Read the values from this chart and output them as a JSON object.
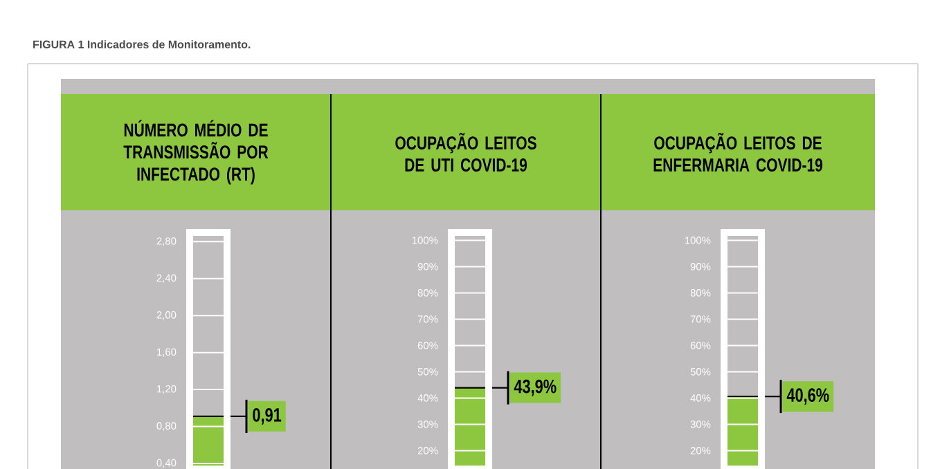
{
  "chart_data": [
    {
      "type": "bar",
      "title": "NÚMERO MÉDIO DE TRANSMISSÃO POR INFECTADO (RT)",
      "annotations": [
        "FIGURA 1 Indicadores de Monitoramento."
      ],
      "categories": [
        null
      ],
      "values": [
        0.91
      ],
      "value_labels": [
        "0,91"
      ],
      "color": "#8dc63f",
      "ylim": [
        0.34,
        2.9
      ],
      "yticks": [
        {
          "value": 0.4,
          "label": "0,40"
        },
        {
          "value": 0.8,
          "label": "0,80"
        },
        {
          "value": 1.2,
          "label": "1,20"
        },
        {
          "value": 1.6,
          "label": "1,60"
        },
        {
          "value": 2.0,
          "label": "2,00"
        },
        {
          "value": 2.4,
          "label": "2,40"
        },
        {
          "value": 2.8,
          "label": "2,80"
        }
      ],
      "grid": "y"
    },
    {
      "type": "bar",
      "title": "OCUPAÇÃO LEITOS DE UTI COVID-19",
      "categories": [
        null
      ],
      "values": [
        43.9
      ],
      "value_labels": [
        "43,9%"
      ],
      "color": "#8dc63f",
      "ylim": [
        13,
        103
      ],
      "yticks": [
        {
          "value": 20,
          "label": "20%"
        },
        {
          "value": 30,
          "label": "30%"
        },
        {
          "value": 40,
          "label": "40%"
        },
        {
          "value": 50,
          "label": "50%"
        },
        {
          "value": 60,
          "label": "60%"
        },
        {
          "value": 70,
          "label": "70%"
        },
        {
          "value": 80,
          "label": "80%"
        },
        {
          "value": 90,
          "label": "90%"
        },
        {
          "value": 100,
          "label": "100%"
        }
      ],
      "grid": "y"
    },
    {
      "type": "bar",
      "title": "OCUPAÇÃO LEITOS DE ENFERMARIA COVID-19",
      "categories": [
        null
      ],
      "values": [
        40.6
      ],
      "value_labels": [
        "40,6%"
      ],
      "color": "#8dc63f",
      "ylim": [
        13,
        103
      ],
      "yticks": [
        {
          "value": 20,
          "label": "20%"
        },
        {
          "value": 30,
          "label": "30%"
        },
        {
          "value": 40,
          "label": "40%"
        },
        {
          "value": 50,
          "label": "50%"
        },
        {
          "value": 60,
          "label": "60%"
        },
        {
          "value": 70,
          "label": "70%"
        },
        {
          "value": 80,
          "label": "80%"
        },
        {
          "value": 90,
          "label": "90%"
        },
        {
          "value": 100,
          "label": "100%"
        }
      ],
      "grid": "y"
    }
  ]
}
